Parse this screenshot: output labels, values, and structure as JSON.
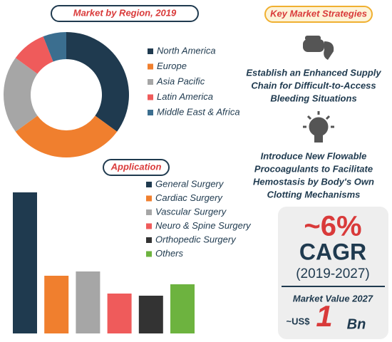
{
  "chart_data": [
    {
      "type": "donut",
      "title": "Market by Region, 2019",
      "categories": [
        "North America",
        "Europe",
        "Asia Pacific",
        "Latin America",
        "Middle East & Africa"
      ],
      "values": [
        35,
        30,
        20,
        9,
        6
      ],
      "colors": [
        "#1f3a4f",
        "#f07f2e",
        "#a6a6a6",
        "#ef5b5b",
        "#3b6e8f"
      ]
    },
    {
      "type": "bar",
      "title": "Application",
      "categories": [
        "General Surgery",
        "Cardiac Surgery",
        "Vascular Surgery",
        "Neuro & Spine Surgery",
        "Orthopedic Surgery",
        "Others"
      ],
      "values": [
        198,
        81,
        87,
        56,
        53,
        69
      ],
      "colors": [
        "#1f3a4f",
        "#f07f2e",
        "#a6a6a6",
        "#ef5b5b",
        "#333333",
        "#6db33f"
      ]
    }
  ],
  "strategies": {
    "title": "Key Market Strategies",
    "items": [
      {
        "lines": [
          "Establish an Enhanced Supply",
          "Chain for Difficult-to-Access",
          "Bleeding Situations"
        ]
      },
      {
        "lines": [
          "Introduce New Flowable",
          "Procoagulants to Facilitate",
          "Hemostasis by Body's Own",
          "Clotting Mechanisms"
        ]
      }
    ]
  },
  "cagr": {
    "rate": "~6%",
    "label": "CAGR",
    "period": "(2019-2027)",
    "value_title": "Market Value 2027",
    "prefix": "~US$",
    "value": "1",
    "unit": "Bn"
  }
}
